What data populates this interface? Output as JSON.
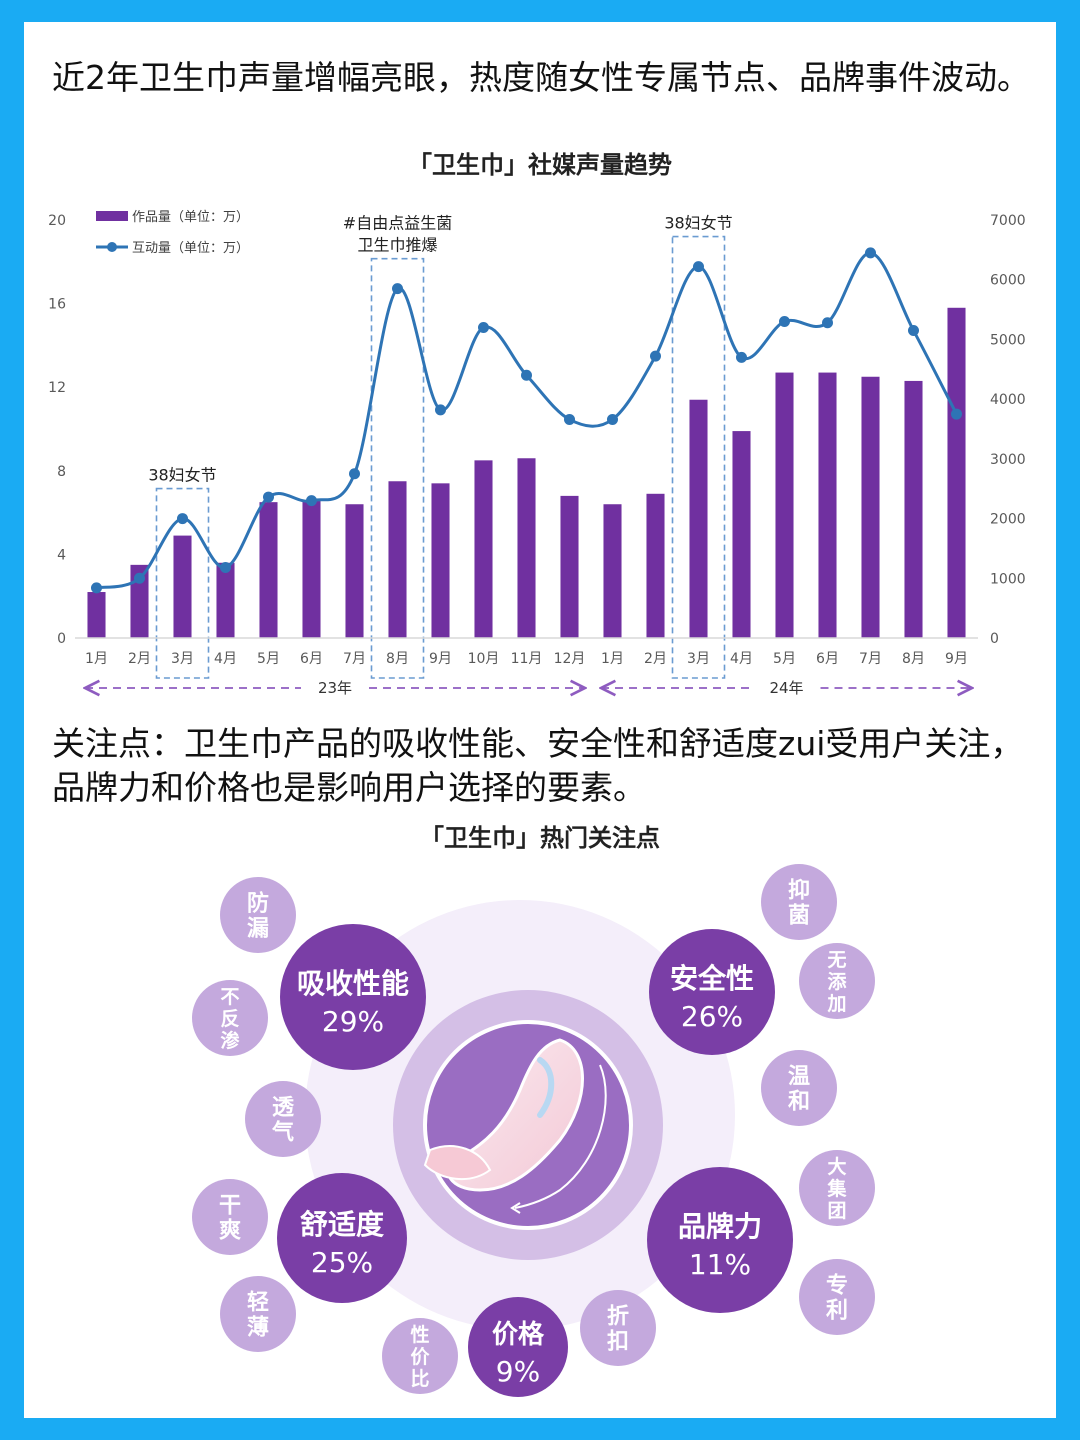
{
  "colors": {
    "frame": "#1aabf3",
    "bar": "#7030a0",
    "line": "#2e74b5",
    "circle_dark": "#7a3ea6",
    "circle_light": "#c4a9dd",
    "arrow": "#8e5cc0"
  },
  "section1": {
    "headline": "近2年卫生巾声量增幅亮眼，热度随女性专属节点、品牌事件波动。"
  },
  "chart_data": {
    "type": "bar",
    "title": "「卫生巾」社媒声量趋势",
    "categories": [
      "1月",
      "2月",
      "3月",
      "4月",
      "5月",
      "6月",
      "7月",
      "8月",
      "9月",
      "10月",
      "11月",
      "12月",
      "1月",
      "2月",
      "3月",
      "4月",
      "5月",
      "6月",
      "7月",
      "8月",
      "9月"
    ],
    "year_groups": [
      {
        "label": "23年",
        "start": 0,
        "end": 11
      },
      {
        "label": "24年",
        "start": 12,
        "end": 20
      }
    ],
    "series": [
      {
        "name": "作品量（单位：万）",
        "type": "bar",
        "axis": "left",
        "values": [
          2.2,
          3.5,
          4.9,
          3.6,
          6.5,
          6.6,
          6.4,
          7.5,
          7.4,
          8.5,
          8.6,
          6.8,
          6.4,
          6.9,
          11.4,
          9.9,
          12.7,
          12.7,
          12.5,
          12.3,
          15.8
        ]
      },
      {
        "name": "互动量（单位：万）",
        "type": "line",
        "axis": "right",
        "values": [
          840,
          1000,
          2000,
          1180,
          2360,
          2300,
          2750,
          5850,
          3820,
          5200,
          4400,
          3660,
          3660,
          4720,
          6220,
          4700,
          5300,
          5280,
          6450,
          5150,
          3750
        ]
      }
    ],
    "y_left": {
      "min": 0,
      "max": 20,
      "ticks": [
        0,
        4,
        8,
        12,
        16,
        20
      ]
    },
    "y_right": {
      "min": 0,
      "max": 7000,
      "ticks": [
        0,
        1000,
        2000,
        3000,
        4000,
        5000,
        6000,
        7000
      ]
    },
    "legend_position": "top-left",
    "annotations": [
      {
        "index": 2,
        "lines": [
          "38妇女节"
        ]
      },
      {
        "index": 7,
        "lines": [
          "#自由点益生菌",
          "卫生巾推爆"
        ]
      },
      {
        "index": 14,
        "lines": [
          "38妇女节"
        ]
      }
    ]
  },
  "section2": {
    "headline": "关注点：卫生巾产品的吸收性能、安全性和舒适度zui受用户关注，品牌力和价格也是影响用户选择的要素。",
    "title": "「卫生巾」热门关注点",
    "main_topics": [
      {
        "label": "吸收性能",
        "percent": "29%"
      },
      {
        "label": "安全性",
        "percent": "26%"
      },
      {
        "label": "舒适度",
        "percent": "25%"
      },
      {
        "label": "品牌力",
        "percent": "11%"
      },
      {
        "label": "价格",
        "percent": "9%"
      }
    ],
    "sub_topics": [
      "防漏",
      "不反渗",
      "透气",
      "干爽",
      "轻薄",
      "抑菌",
      "无添加",
      "温和",
      "大集团",
      "专利",
      "性价比",
      "折扣"
    ]
  }
}
